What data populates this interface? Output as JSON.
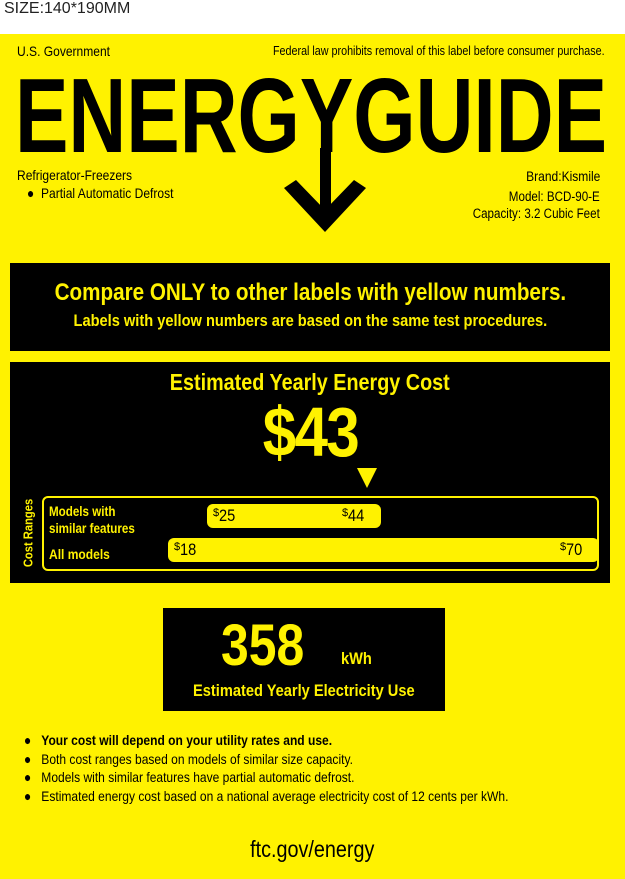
{
  "size_note": "SIZE:140*190MM",
  "header": {
    "gov": "U.S. Government",
    "law": "Federal law prohibits removal of this label before consumer purchase.",
    "title": "ENERGYGUIDE"
  },
  "product": {
    "type": "Refrigerator-Freezers",
    "feature": "Partial Automatic Defrost",
    "brand": "Brand:Kismile",
    "model": "Model: BCD-90-E",
    "capacity": "Capacity: 3.2 Cubic Feet"
  },
  "compare": {
    "line1": "Compare ONLY to other labels with yellow numbers.",
    "line2": "Labels with yellow numbers are based on the same test procedures."
  },
  "cost": {
    "title": "Estimated Yearly Energy Cost",
    "value": "$43",
    "value_number": 43,
    "ranges_label": "Cost Ranges",
    "similar": {
      "label_1": "Models with",
      "label_2": "similar features",
      "min": "25",
      "max": "44"
    },
    "all": {
      "label": "All models",
      "min": "18",
      "max": "70"
    },
    "currency": "$"
  },
  "electricity": {
    "value": "358",
    "unit": "kWh",
    "label": "Estimated Yearly Electricity Use"
  },
  "notes": [
    "Your cost will depend on your utility rates and use.",
    "Both cost ranges based on models of similar size capacity.",
    "Models with similar features have partial automatic defrost.",
    "Estimated energy cost based on a national average electricity cost of 12 cents per kWh."
  ],
  "footer": "ftc.gov/energy",
  "colors": {
    "label_yellow": "#fff200",
    "black": "#000000"
  }
}
